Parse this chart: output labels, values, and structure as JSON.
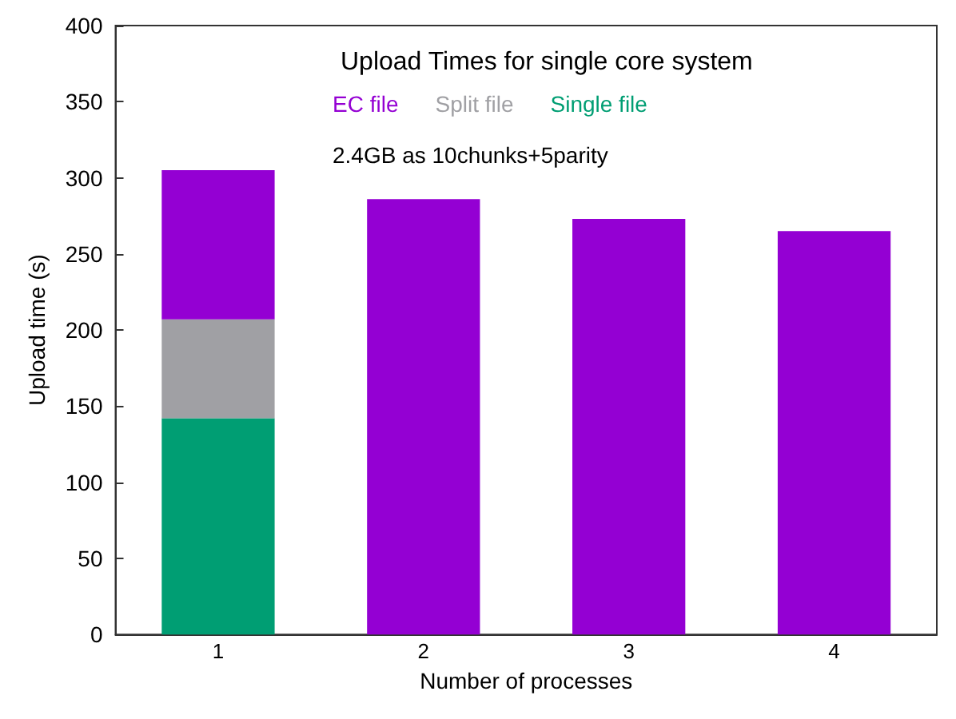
{
  "chart_data": {
    "type": "bar",
    "title": "Upload Times for single core system",
    "annotations": [
      "2.4GB as 10chunks+5parity"
    ],
    "xlabel": "Number of processes",
    "ylabel": "Upload time (s)",
    "categories": [
      "1",
      "2",
      "3",
      "4"
    ],
    "stacked": true,
    "series": [
      {
        "name": "Single file",
        "color": "#009e73",
        "values": [
          142,
          null,
          null,
          null
        ]
      },
      {
        "name": "Split file",
        "color": "#a0a0a4",
        "values": [
          65,
          null,
          null,
          null
        ]
      },
      {
        "name": "EC file",
        "color": "#9400d3",
        "values": [
          98,
          286,
          273,
          265
        ]
      }
    ],
    "ylim": [
      0,
      400
    ],
    "yticks": [
      0,
      50,
      100,
      150,
      200,
      250,
      300,
      350,
      400
    ],
    "grid": false,
    "legend": "top"
  }
}
